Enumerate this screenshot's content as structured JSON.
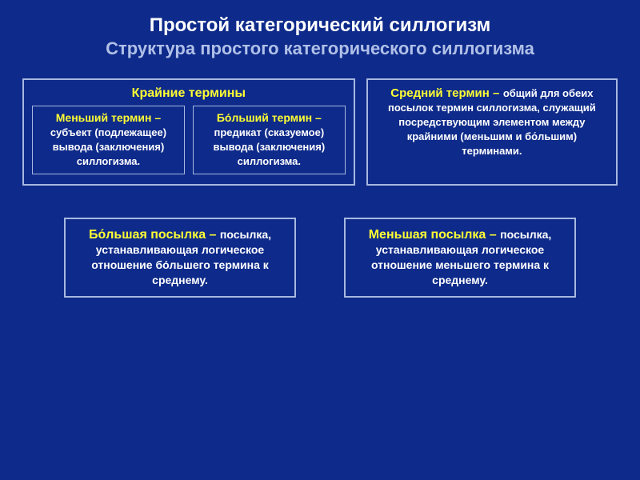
{
  "colors": {
    "background": "#0e2a8a",
    "white": "#ffffff",
    "yellow": "#ffff33",
    "subtitle": "#b0c0e8",
    "border": "#a8b8e0"
  },
  "title": {
    "main": "Простой категорический силлогизм",
    "sub": "Структура простого категорического силлогизма"
  },
  "extreme": {
    "header": "Крайние термины",
    "minor": {
      "head": "Меньший термин –",
      "body": "субъект (подлежащее) вывода (заключения) силлогизма."
    },
    "major": {
      "head": "Бо́льший термин –",
      "body": "предикат (сказуемое) вывода (заключения) силлогизма."
    }
  },
  "middle": {
    "head": "Средний термин –",
    "body": "общий для обеих посылок термин силлогизма, служащий посредствующим элементом между крайними (меньшим и бо́льшим) терминами."
  },
  "premises": {
    "major": {
      "head": "Бо́льшая посылка –",
      "body": "посылка, устанавливающая логическое отношение бо́льшего термина к среднему."
    },
    "minor": {
      "head": "Меньшая посылка –",
      "body": "посылка, устанавливающая логическое отношение меньшего термина к среднему."
    }
  }
}
